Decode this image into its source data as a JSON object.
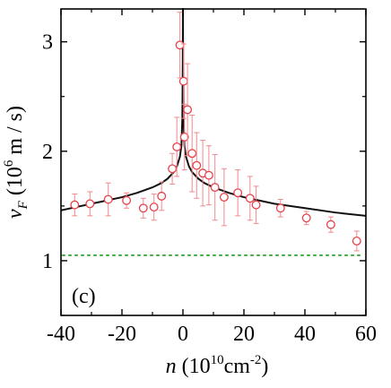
{
  "chart_data": {
    "type": "scatter",
    "panel_label": "(c)",
    "xlabel": {
      "symbol": "n",
      "unit_prefix": " (10",
      "unit_exp": "10",
      "unit_mid": "cm",
      "unit_exp2": "-2",
      "unit_suffix": ")"
    },
    "ylabel": {
      "symbol": "v",
      "subscript": "F",
      "unit_prefix": " (10",
      "unit_exp": "6",
      "unit_suffix": " m / s)"
    },
    "xlim": [
      -40,
      60
    ],
    "ylim": [
      0.5,
      3.3
    ],
    "x_ticks": [
      -40,
      -20,
      0,
      20,
      40,
      60
    ],
    "x_tick_labels": [
      "-40",
      "-20",
      "0",
      "20",
      "40",
      "60"
    ],
    "y_ticks": [
      1,
      2,
      3
    ],
    "y_tick_labels": [
      "1",
      "2",
      "3"
    ],
    "grid": false,
    "colors": {
      "points": "#e8424a",
      "error_bars": "#f08a8f",
      "fit_line": "#111111",
      "reference_line": "#3aa53a"
    },
    "series": [
      {
        "marker": "open-circle",
        "points": [
          {
            "x": -35.5,
            "y": 1.51,
            "err": 0.1
          },
          {
            "x": -30.5,
            "y": 1.52,
            "err": 0.11
          },
          {
            "x": -24.5,
            "y": 1.56,
            "err": 0.15
          },
          {
            "x": -18.5,
            "y": 1.55,
            "err": 0.07
          },
          {
            "x": -13.0,
            "y": 1.48,
            "err": 0.09
          },
          {
            "x": -9.5,
            "y": 1.49,
            "err": 0.12
          },
          {
            "x": -7.0,
            "y": 1.59,
            "err": 0.13
          },
          {
            "x": -3.5,
            "y": 1.84,
            "err": 0.14
          },
          {
            "x": -2.0,
            "y": 2.04,
            "err": 0.27
          },
          {
            "x": -1.0,
            "y": 2.97,
            "err": 0.3
          },
          {
            "x": 0.2,
            "y": 2.64,
            "err": 0.34
          },
          {
            "x": 0.5,
            "y": 2.13,
            "err": 0.3
          },
          {
            "x": 1.5,
            "y": 2.38,
            "err": 0.42
          },
          {
            "x": 3.0,
            "y": 1.98,
            "err": 0.35
          },
          {
            "x": 4.5,
            "y": 1.87,
            "err": 0.3
          },
          {
            "x": 6.5,
            "y": 1.8,
            "err": 0.3
          },
          {
            "x": 8.5,
            "y": 1.78,
            "err": 0.27
          },
          {
            "x": 10.5,
            "y": 1.67,
            "err": 0.3
          },
          {
            "x": 13.5,
            "y": 1.58,
            "err": 0.26
          },
          {
            "x": 18.0,
            "y": 1.62,
            "err": 0.21
          },
          {
            "x": 22.0,
            "y": 1.57,
            "err": 0.2
          },
          {
            "x": 24.0,
            "y": 1.51,
            "err": 0.17
          },
          {
            "x": 32.0,
            "y": 1.48,
            "err": 0.08
          },
          {
            "x": 40.5,
            "y": 1.39,
            "err": 0.06
          },
          {
            "x": 48.5,
            "y": 1.33,
            "err": 0.07
          },
          {
            "x": 57.0,
            "y": 1.18,
            "err": 0.09
          }
        ]
      }
    ],
    "fit_curve": [
      {
        "x": -40,
        "y": 1.46
      },
      {
        "x": -35,
        "y": 1.49
      },
      {
        "x": -30,
        "y": 1.52
      },
      {
        "x": -25,
        "y": 1.55
      },
      {
        "x": -20,
        "y": 1.58
      },
      {
        "x": -15,
        "y": 1.62
      },
      {
        "x": -10,
        "y": 1.67
      },
      {
        "x": -7,
        "y": 1.71
      },
      {
        "x": -5,
        "y": 1.75
      },
      {
        "x": -3,
        "y": 1.81
      },
      {
        "x": -2,
        "y": 1.86
      },
      {
        "x": -1,
        "y": 1.95
      },
      {
        "x": -0.5,
        "y": 2.05
      },
      {
        "x": -0.2,
        "y": 2.3
      },
      {
        "x": -0.05,
        "y": 2.8
      },
      {
        "x": -0.01,
        "y": 3.3
      },
      {
        "x": 0.01,
        "y": 3.3
      },
      {
        "x": 0.05,
        "y": 2.8
      },
      {
        "x": 0.2,
        "y": 2.3
      },
      {
        "x": 0.5,
        "y": 2.05
      },
      {
        "x": 1,
        "y": 1.95
      },
      {
        "x": 2,
        "y": 1.86
      },
      {
        "x": 3,
        "y": 1.81
      },
      {
        "x": 5,
        "y": 1.75
      },
      {
        "x": 7,
        "y": 1.71
      },
      {
        "x": 10,
        "y": 1.67
      },
      {
        "x": 15,
        "y": 1.62
      },
      {
        "x": 20,
        "y": 1.58
      },
      {
        "x": 25,
        "y": 1.55
      },
      {
        "x": 30,
        "y": 1.52
      },
      {
        "x": 40,
        "y": 1.48
      },
      {
        "x": 50,
        "y": 1.44
      },
      {
        "x": 60,
        "y": 1.41
      }
    ],
    "reference_line": {
      "y": 1.05,
      "style": "dotted"
    }
  }
}
